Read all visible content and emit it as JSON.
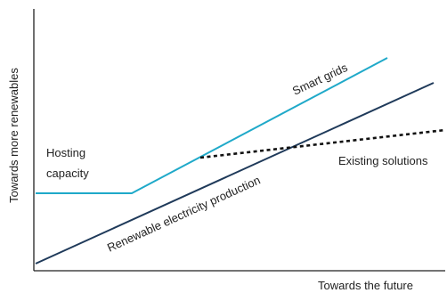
{
  "axes": {
    "x_label": "Towards the future",
    "y_label": "Towards more renewables"
  },
  "labels": {
    "hosting_capacity_line1": "Hosting",
    "hosting_capacity_line2": "capacity",
    "smart_grids": "Smart grids",
    "existing_solutions": "Existing solutions",
    "renewable_production": "Renewable electricity production"
  },
  "colors": {
    "axis": "#222222",
    "hosting_capacity": "#1fa9c9",
    "renewable_production": "#1f3a5a",
    "existing_solutions": "#111111"
  }
}
